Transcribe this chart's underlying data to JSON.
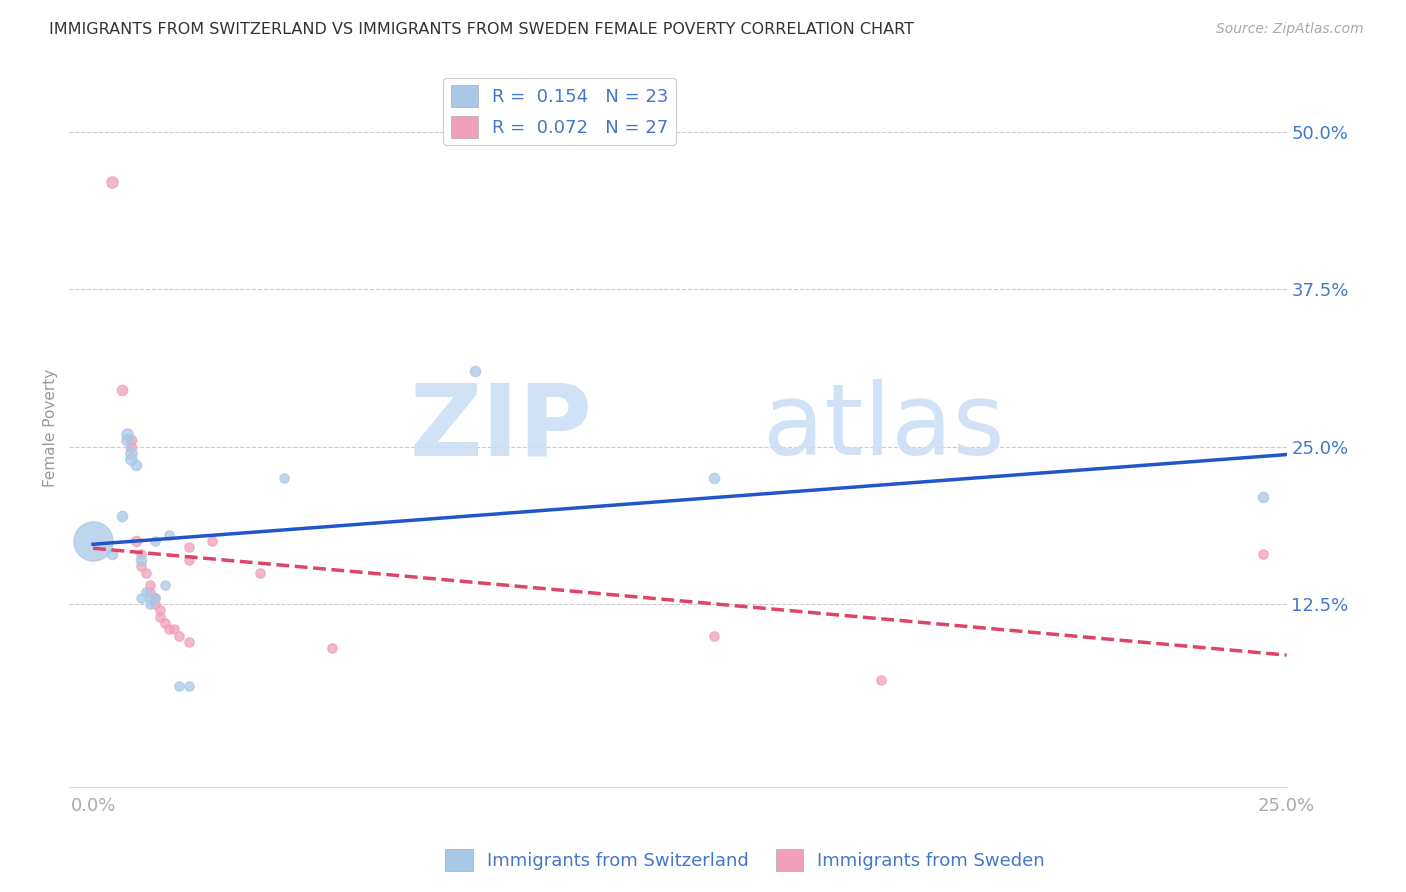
{
  "title": "IMMIGRANTS FROM SWITZERLAND VS IMMIGRANTS FROM SWEDEN FEMALE POVERTY CORRELATION CHART",
  "source": "Source: ZipAtlas.com",
  "ylabel": "Female Poverty",
  "xlim": [
    -0.005,
    0.25
  ],
  "ylim": [
    -0.02,
    0.55
  ],
  "ytick_labels": [
    "12.5%",
    "25.0%",
    "37.5%",
    "50.0%"
  ],
  "ytick_values": [
    0.125,
    0.25,
    0.375,
    0.5
  ],
  "xtick_values": [
    0.0,
    0.25
  ],
  "xtick_labels": [
    "0.0%",
    "25.0%"
  ],
  "legend_R1": "R =  0.154",
  "legend_N1": "N = 23",
  "legend_R2": "R =  0.072",
  "legend_N2": "N = 27",
  "blue_color": "#a8c8e8",
  "pink_color": "#f0a0b8",
  "blue_line_color": "#2255cc",
  "pink_line_color": "#dd4466",
  "swiss_data": [
    [
      0.0,
      0.175,
      38
    ],
    [
      0.004,
      0.165,
      10
    ],
    [
      0.006,
      0.195,
      10
    ],
    [
      0.007,
      0.26,
      11
    ],
    [
      0.007,
      0.255,
      11
    ],
    [
      0.008,
      0.245,
      11
    ],
    [
      0.008,
      0.24,
      11
    ],
    [
      0.009,
      0.235,
      10
    ],
    [
      0.01,
      0.16,
      10
    ],
    [
      0.01,
      0.13,
      9
    ],
    [
      0.011,
      0.135,
      9
    ],
    [
      0.012,
      0.13,
      9
    ],
    [
      0.012,
      0.125,
      9
    ],
    [
      0.013,
      0.13,
      9
    ],
    [
      0.013,
      0.175,
      9
    ],
    [
      0.015,
      0.14,
      9
    ],
    [
      0.016,
      0.18,
      9
    ],
    [
      0.018,
      0.06,
      9
    ],
    [
      0.02,
      0.06,
      9
    ],
    [
      0.04,
      0.225,
      9
    ],
    [
      0.08,
      0.31,
      10
    ],
    [
      0.13,
      0.225,
      10
    ],
    [
      0.245,
      0.21,
      10
    ]
  ],
  "sweden_data": [
    [
      0.004,
      0.46,
      11
    ],
    [
      0.006,
      0.295,
      10
    ],
    [
      0.008,
      0.255,
      10
    ],
    [
      0.008,
      0.25,
      10
    ],
    [
      0.009,
      0.175,
      10
    ],
    [
      0.01,
      0.165,
      9
    ],
    [
      0.01,
      0.155,
      9
    ],
    [
      0.011,
      0.15,
      9
    ],
    [
      0.012,
      0.135,
      9
    ],
    [
      0.012,
      0.14,
      9
    ],
    [
      0.013,
      0.13,
      9
    ],
    [
      0.013,
      0.125,
      9
    ],
    [
      0.014,
      0.12,
      9
    ],
    [
      0.014,
      0.115,
      9
    ],
    [
      0.015,
      0.11,
      9
    ],
    [
      0.016,
      0.105,
      9
    ],
    [
      0.017,
      0.105,
      9
    ],
    [
      0.018,
      0.1,
      9
    ],
    [
      0.02,
      0.095,
      9
    ],
    [
      0.02,
      0.16,
      9
    ],
    [
      0.02,
      0.17,
      9
    ],
    [
      0.025,
      0.175,
      9
    ],
    [
      0.035,
      0.15,
      9
    ],
    [
      0.05,
      0.09,
      9
    ],
    [
      0.13,
      0.1,
      9
    ],
    [
      0.165,
      0.065,
      9
    ],
    [
      0.245,
      0.165,
      9
    ]
  ]
}
